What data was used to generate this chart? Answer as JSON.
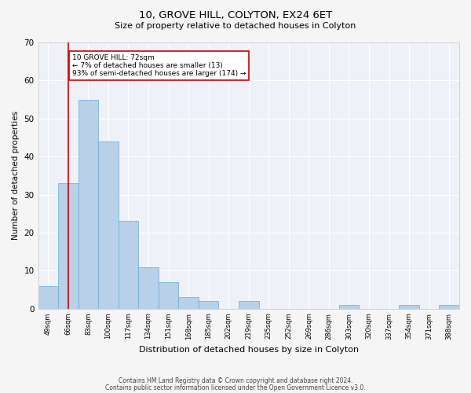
{
  "title": "10, GROVE HILL, COLYTON, EX24 6ET",
  "subtitle": "Size of property relative to detached houses in Colyton",
  "xlabel": "Distribution of detached houses by size in Colyton",
  "ylabel": "Number of detached properties",
  "categories": [
    "49sqm",
    "66sqm",
    "83sqm",
    "100sqm",
    "117sqm",
    "134sqm",
    "151sqm",
    "168sqm",
    "185sqm",
    "202sqm",
    "219sqm",
    "235sqm",
    "252sqm",
    "269sqm",
    "286sqm",
    "303sqm",
    "320sqm",
    "337sqm",
    "354sqm",
    "371sqm",
    "388sqm"
  ],
  "values": [
    6,
    33,
    55,
    44,
    23,
    11,
    7,
    3,
    2,
    0,
    2,
    0,
    0,
    0,
    0,
    1,
    0,
    0,
    1,
    0,
    1
  ],
  "bar_color": "#b8d0e8",
  "bar_edge_color": "#6aaad4",
  "background_color": "#eef2f8",
  "fig_background_color": "#f5f5f5",
  "grid_color": "#ffffff",
  "ylim": [
    0,
    70
  ],
  "yticks": [
    0,
    10,
    20,
    30,
    40,
    50,
    60,
    70
  ],
  "annotation_box_text": "10 GROVE HILL: 72sqm\n← 7% of detached houses are smaller (13)\n93% of semi-detached houses are larger (174) →",
  "annotation_box_color": "#ffffff",
  "annotation_box_edge_color": "#cc0000",
  "vline_x": 1.0,
  "vline_color": "#cc0000",
  "footer_line1": "Contains HM Land Registry data © Crown copyright and database right 2024.",
  "footer_line2": "Contains public sector information licensed under the Open Government Licence v3.0."
}
